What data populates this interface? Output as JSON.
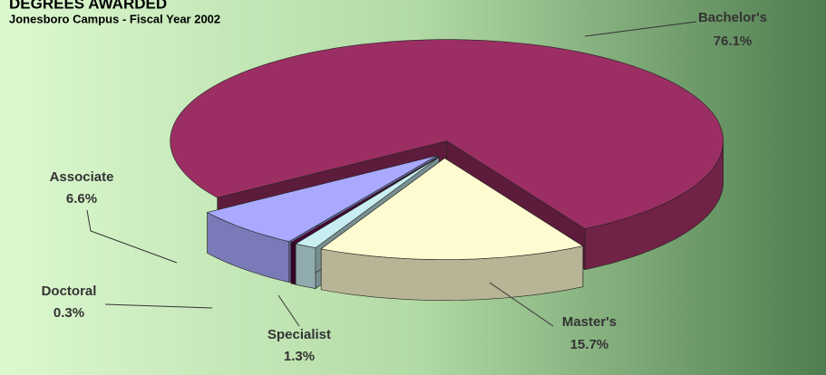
{
  "chart_data": {
    "type": "pie",
    "title": "DEGREES AWARDED",
    "subtitle": "Jonesboro Campus - Fiscal Year 2002",
    "categories": [
      "Bachelor's",
      "Master's",
      "Specialist",
      "Doctoral",
      "Associate"
    ],
    "values": [
      76.1,
      15.7,
      1.3,
      0.3,
      6.6
    ],
    "value_labels": [
      "76.1%",
      "15.7%",
      "1.3%",
      "0.3%",
      "6.6%"
    ],
    "colors": [
      "#9b2f63",
      "#fffbd0",
      "#c8eef2",
      "#4a0036",
      "#a9a9ff"
    ]
  }
}
